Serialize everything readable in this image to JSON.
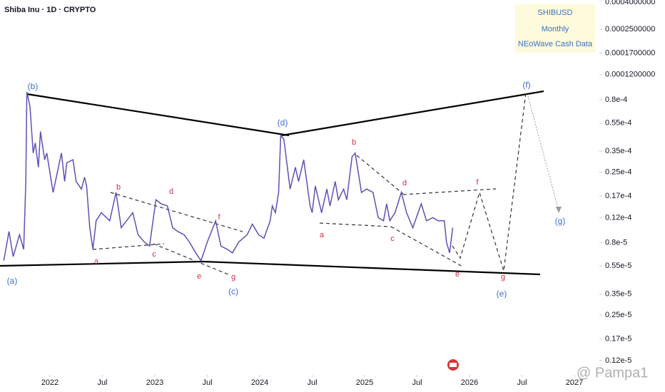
{
  "chart_data": {
    "type": "line",
    "title": "Shiba Inu · 1D · CRYPTO",
    "legend_box": [
      "SHIBUSD",
      "Monthly",
      "NEoWave Cash Data"
    ],
    "watermark": "@ Pampa1",
    "log_scale": true,
    "xlim": [
      2021.524,
      2027.238
    ],
    "xticks": [
      2022,
      {
        "value": 2022.5,
        "label": "Jul"
      },
      2023,
      {
        "value": 2023.5,
        "label": "Jul"
      },
      2024,
      {
        "value": 2024.5,
        "label": "Jul"
      },
      2025,
      {
        "value": 2025.5,
        "label": "Jul"
      },
      2026,
      {
        "value": 2026.5,
        "label": "Jul"
      },
      2027
    ],
    "ylim": [
      1.02e-06,
      0.0004
    ],
    "yticks": [
      {
        "value": 0.0004,
        "label": "0.0004000000"
      },
      {
        "value": 0.00025,
        "label": "0.0002500000"
      },
      {
        "value": 0.00017,
        "label": "0.0001700000"
      },
      {
        "value": 0.00012,
        "label": "0.0001200000"
      },
      {
        "value": 8e-05,
        "label": "0.8e-4"
      },
      {
        "value": 5.5e-05,
        "label": "0.55e-4"
      },
      {
        "value": 3.5e-05,
        "label": "0.35e-4"
      },
      {
        "value": 2.5e-05,
        "label": "0.25e-4"
      },
      {
        "value": 1.7e-05,
        "label": "0.17e-4"
      },
      {
        "value": 1.2e-05,
        "label": "0.12e-4"
      },
      {
        "value": 8e-06,
        "label": "0.8e-5"
      },
      {
        "value": 5.5e-06,
        "label": "0.55e-5"
      },
      {
        "value": 3.5e-06,
        "label": "0.35e-5"
      },
      {
        "value": 2.5e-06,
        "label": "0.25e-5"
      },
      {
        "value": 1.7e-06,
        "label": "0.17e-5"
      },
      {
        "value": 1.2e-06,
        "label": "0.12e-5"
      }
    ],
    "series": [
      {
        "name": "SHIBUSD",
        "color": "#5d52b3",
        "x": [
          2021.56,
          2021.61,
          2021.65,
          2021.71,
          2021.75,
          2021.77,
          2021.78,
          2021.81,
          2021.84,
          2021.86,
          2021.89,
          2021.91,
          2021.95,
          2021.97,
          2022.03,
          2022.11,
          2022.14,
          2022.16,
          2022.22,
          2022.25,
          2022.3,
          2022.33,
          2022.35,
          2022.38,
          2022.41,
          2022.44,
          2022.49,
          2022.57,
          2022.63,
          2022.68,
          2022.73,
          2022.79,
          2022.84,
          2022.9,
          2022.95,
          2023.01,
          2023.06,
          2023.12,
          2023.17,
          2023.22,
          2023.28,
          2023.33,
          2023.39,
          2023.44,
          2023.5,
          2023.58,
          2023.63,
          2023.69,
          2023.74,
          2023.8,
          2023.88,
          2023.93,
          2023.99,
          2024.04,
          2024.1,
          2024.12,
          2024.15,
          2024.18,
          2024.2,
          2024.23,
          2024.29,
          2024.34,
          2024.37,
          2024.42,
          2024.48,
          2024.5,
          2024.53,
          2024.59,
          2024.64,
          2024.67,
          2024.72,
          2024.75,
          2024.8,
          2024.83,
          2024.88,
          2024.91,
          2024.97,
          2025.02,
          2025.08,
          2025.13,
          2025.18,
          2025.21,
          2025.24,
          2025.29,
          2025.35,
          2025.4,
          2025.46,
          2025.54,
          2025.59,
          2025.65,
          2025.7,
          2025.76,
          2025.78,
          2025.81,
          2025.84
        ],
        "values": [
          6e-06,
          9.6e-06,
          6.4e-06,
          9.1e-06,
          7.2e-06,
          2.15e-05,
          9.1e-05,
          7.2e-05,
          3.4e-05,
          4e-05,
          2.7e-05,
          4.8e-05,
          3.05e-05,
          3.4e-05,
          1.8e-05,
          3.4e-05,
          2.15e-05,
          2.9e-05,
          3.05e-05,
          2.15e-05,
          1.9e-05,
          2.3e-05,
          2e-05,
          1.02e-05,
          7.2e-06,
          1.14e-05,
          1.3e-05,
          1.14e-05,
          1.8e-05,
          1.02e-05,
          1.14e-05,
          1.3e-05,
          9.1e-06,
          8.1e-06,
          7.6e-06,
          1.6e-05,
          1.5e-05,
          1.45e-05,
          1.02e-05,
          9.6e-06,
          9.1e-06,
          8.1e-06,
          6.8e-06,
          6e-06,
          8.1e-06,
          1.14e-05,
          7.6e-06,
          7.2e-06,
          6.8e-06,
          8.1e-06,
          9.1e-06,
          1.08e-05,
          9.1e-06,
          8.6e-06,
          1.14e-05,
          1.45e-05,
          1.3e-05,
          1.8e-05,
          4.5e-05,
          4.25e-05,
          1.9e-05,
          2.7e-05,
          2.15e-05,
          3.05e-05,
          1.45e-05,
          1.3e-05,
          2e-05,
          1.3e-05,
          1.9e-05,
          1.45e-05,
          2.15e-05,
          1.6e-05,
          1.9e-05,
          1.6e-05,
          3.2e-05,
          3.4e-05,
          1.8e-05,
          1.9e-05,
          1.8e-05,
          1.2e-05,
          1.14e-05,
          1.5e-05,
          1.14e-05,
          1.3e-05,
          1.8e-05,
          1.3e-05,
          1.02e-05,
          1.5e-05,
          1.14e-05,
          1.2e-05,
          1.14e-05,
          1.14e-05,
          8.1e-06,
          6.8e-06,
          1.02e-05
        ]
      }
    ],
    "annotations": [
      "(a)",
      "(b)",
      "(c)",
      "(d)",
      "(e)",
      "(f)",
      "(g)",
      "a",
      "b",
      "c",
      "d",
      "e",
      "f",
      "g",
      "a",
      "b",
      "c",
      "d",
      "e",
      "f",
      "g"
    ]
  }
}
